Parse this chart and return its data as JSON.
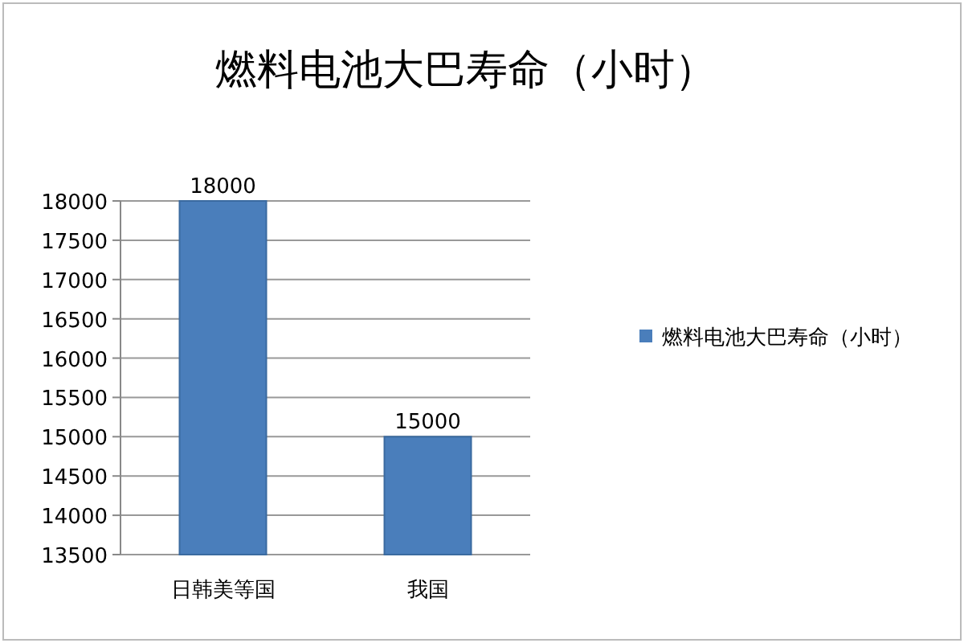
{
  "chart_data": {
    "type": "bar",
    "title": "燃料电池大巴寿命（小时）",
    "categories": [
      "日韩美等国",
      "我国"
    ],
    "series": [
      {
        "name": "燃料电池大巴寿命（小时）",
        "color": "#4a7ebb",
        "values": [
          18000,
          15000
        ]
      }
    ],
    "ylim": [
      13500,
      18000
    ],
    "yticks": [
      13500,
      14000,
      14500,
      15000,
      15500,
      16000,
      16500,
      17000,
      17500,
      18000
    ],
    "grid": "y",
    "legend": "right",
    "data_labels": true
  }
}
